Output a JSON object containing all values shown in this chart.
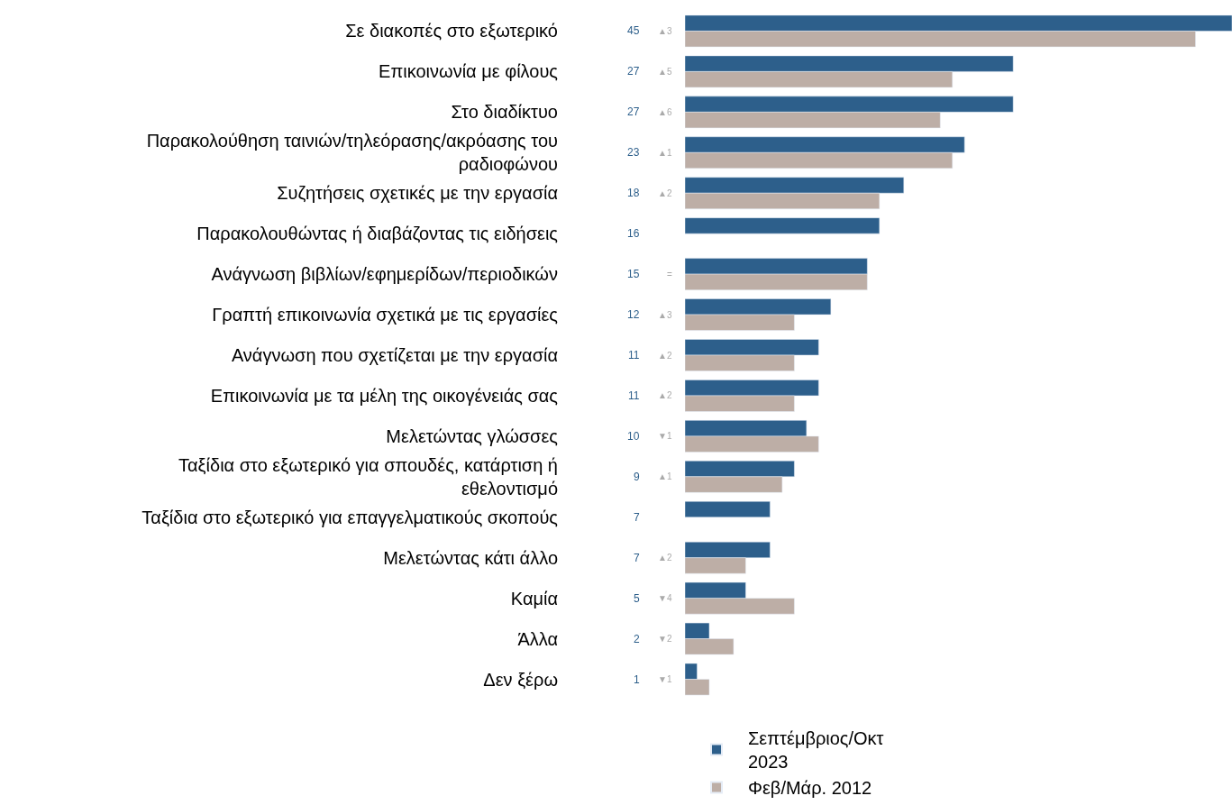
{
  "chart_data": {
    "type": "bar",
    "orientation": "horizontal",
    "legend": "bottom",
    "categories": [
      "Σε διακοπές στο εξωτερικό",
      "Επικοινωνία με φίλους",
      "Στο διαδίκτυο",
      "Παρακολούθηση ταινιών/τηλεόρασης/ακρόασης του ραδιοφώνου",
      "Συζητήσεις σχετικές με την εργασία",
      "Παρακολουθώντας ή διαβάζοντας τις ειδήσεις",
      "Ανάγνωση βιβλίων/εφημερίδων/περιοδικών",
      "Γραπτή επικοινωνία σχετικά με τις εργασίες",
      "Ανάγνωση που σχετίζεται με την εργασία",
      "Επικοινωνία με τα μέλη της οικογένειάς σας",
      "Μελετώντας γλώσσες",
      "Ταξίδια στο εξωτερικό για σπουδές, κατάρτιση ή εθελοντισμό",
      "Ταξίδια στο εξωτερικό για επαγγελματικούς σκοπούς",
      "Μελετώντας κάτι άλλο",
      "Καμία",
      "Άλλα",
      "Δεν ξέρω"
    ],
    "series": [
      {
        "name": "Σεπτέμβριος/Οκτ 2023",
        "color": "#2d5f8b",
        "values": [
          45,
          27,
          27,
          23,
          18,
          16,
          15,
          12,
          11,
          11,
          10,
          9,
          7,
          7,
          5,
          2,
          1
        ],
        "value_labels": [
          "45",
          "27",
          "27",
          "23",
          "18",
          "16",
          "15",
          "12",
          "11",
          "11",
          "10",
          "9",
          "7",
          "7",
          "5",
          "2",
          "1"
        ]
      },
      {
        "name": "Φεβ/Μάρ. 2012",
        "color": "#bdaea6",
        "values": [
          42,
          22,
          21,
          22,
          16,
          null,
          15,
          9,
          9,
          9,
          11,
          8,
          null,
          5,
          9,
          4,
          2
        ]
      }
    ],
    "annotations": [
      "▲3",
      "▲5",
      "▲6",
      "▲1",
      "▲2",
      "=",
      "▲3",
      "▲2",
      "▲2",
      "▼1",
      "▲1",
      "▲2",
      "▼4",
      "▼2",
      "▼1"
    ]
  }
}
